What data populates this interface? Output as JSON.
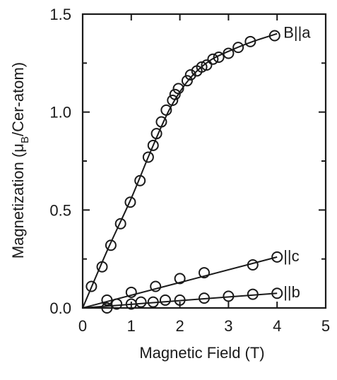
{
  "chart_data": {
    "type": "scatter",
    "title": "",
    "xlabel": "Magnetic Field (T)",
    "ylabel_main": "Magnetization (μ",
    "ylabel_sub": "B",
    "ylabel_tail": "/Cer-atom)",
    "xlim": [
      0,
      5
    ],
    "ylim": [
      0,
      1.5
    ],
    "xticks": [
      "0",
      "1",
      "2",
      "3",
      "4",
      "5"
    ],
    "yticks": [
      "0.0",
      "0.5",
      "1.0",
      "1.5"
    ],
    "grid": false,
    "legend": "labels at line ends",
    "series": [
      {
        "name": "B||a",
        "points": [
          [
            0.18,
            0.11
          ],
          [
            0.4,
            0.21
          ],
          [
            0.58,
            0.32
          ],
          [
            0.78,
            0.43
          ],
          [
            0.98,
            0.54
          ],
          [
            1.18,
            0.65
          ],
          [
            1.35,
            0.77
          ],
          [
            1.45,
            0.83
          ],
          [
            1.52,
            0.89
          ],
          [
            1.62,
            0.95
          ],
          [
            1.72,
            1.01
          ],
          [
            1.85,
            1.06
          ],
          [
            1.9,
            1.09
          ],
          [
            1.97,
            1.12
          ],
          [
            2.15,
            1.16
          ],
          [
            2.22,
            1.19
          ],
          [
            2.35,
            1.21
          ],
          [
            2.45,
            1.23
          ],
          [
            2.55,
            1.24
          ],
          [
            2.68,
            1.27
          ],
          [
            2.8,
            1.28
          ],
          [
            3.0,
            1.3
          ],
          [
            3.2,
            1.33
          ],
          [
            3.45,
            1.36
          ],
          [
            3.95,
            1.39
          ]
        ],
        "curve": [
          [
            0,
            0
          ],
          [
            0.5,
            0.29
          ],
          [
            1.0,
            0.56
          ],
          [
            1.4,
            0.8
          ],
          [
            1.8,
            1.02
          ],
          [
            2.2,
            1.17
          ],
          [
            2.6,
            1.26
          ],
          [
            3.0,
            1.31
          ],
          [
            3.5,
            1.36
          ],
          [
            4.0,
            1.4
          ]
        ]
      },
      {
        "name": "||c",
        "points": [
          [
            0.5,
            0.04
          ],
          [
            1.0,
            0.08
          ],
          [
            1.5,
            0.11
          ],
          [
            2.0,
            0.15
          ],
          [
            2.5,
            0.18
          ],
          [
            3.5,
            0.22
          ],
          [
            4.0,
            0.26
          ]
        ],
        "curve": [
          [
            0,
            0
          ],
          [
            4.0,
            0.26
          ]
        ]
      },
      {
        "name": "||b",
        "points": [
          [
            0.5,
            0.0
          ],
          [
            0.7,
            0.02
          ],
          [
            1.0,
            0.02
          ],
          [
            1.2,
            0.03
          ],
          [
            1.45,
            0.03
          ],
          [
            1.7,
            0.04
          ],
          [
            2.0,
            0.04
          ],
          [
            2.5,
            0.05
          ],
          [
            3.0,
            0.06
          ],
          [
            3.5,
            0.07
          ],
          [
            4.0,
            0.075
          ]
        ],
        "curve": [
          [
            0,
            0
          ],
          [
            4.0,
            0.075
          ]
        ]
      }
    ]
  }
}
